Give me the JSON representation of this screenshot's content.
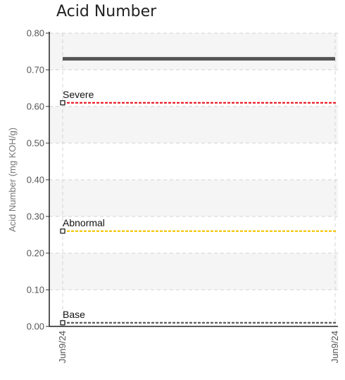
{
  "chart_data": {
    "type": "line",
    "title": "Acid Number",
    "ylabel": "Acid Number (mg KOH/g)",
    "xlabel": "",
    "ylim": [
      0,
      0.8
    ],
    "yticks": [
      "0.00",
      "0.10",
      "0.20",
      "0.30",
      "0.40",
      "0.50",
      "0.60",
      "0.70",
      "0.80"
    ],
    "x_tick_labels": [
      "Jun9/24",
      "Jun9/24"
    ],
    "grid": true,
    "series": [
      {
        "values": [
          0.73,
          0.73
        ],
        "color": "#555555",
        "style": "solid"
      }
    ],
    "thresholds": [
      {
        "name": "Severe",
        "value": 0.61,
        "color": "#e8141b"
      },
      {
        "name": "Abnormal",
        "value": 0.26,
        "color": "#f2c200"
      },
      {
        "name": "Base",
        "value": 0.01,
        "color": "#555555"
      }
    ]
  }
}
